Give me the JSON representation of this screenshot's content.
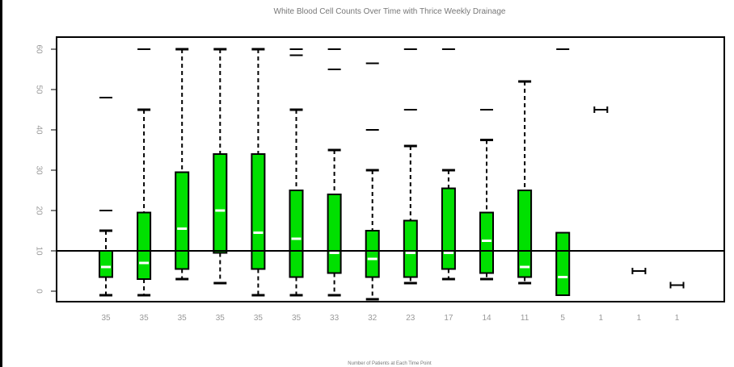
{
  "chart_data": {
    "type": "box",
    "title": "White Blood Cell Counts Over Time with Thrice Weekly Drainage",
    "xlabel": "Number of Patients at Each Time Point",
    "ylabel": "",
    "ylim": [
      -3,
      63
    ],
    "yticks": [
      0,
      10,
      20,
      30,
      40,
      50,
      60
    ],
    "reference_line": 10,
    "box_color": "#00e000",
    "median_color": "#ffffff",
    "grid": false,
    "categories": [
      "35",
      "35",
      "35",
      "35",
      "35",
      "35",
      "33",
      "32",
      "23",
      "17",
      "14",
      "11",
      "5",
      "1",
      "1",
      "1"
    ],
    "boxes": [
      {
        "n": "35",
        "whisker_low": -1,
        "q1": 3.5,
        "median": 6,
        "q3": 10,
        "whisker_high": 15,
        "outliers": [
          20,
          48
        ]
      },
      {
        "n": "35",
        "whisker_low": -1,
        "q1": 3,
        "median": 7,
        "q3": 19.5,
        "whisker_high": 45,
        "outliers": [
          60
        ]
      },
      {
        "n": "35",
        "whisker_low": 3,
        "q1": 5.5,
        "median": 15.5,
        "q3": 29.5,
        "whisker_high": 60,
        "outliers": []
      },
      {
        "n": "35",
        "whisker_low": 2,
        "q1": 9.5,
        "median": 20,
        "q3": 34,
        "whisker_high": 60,
        "outliers": []
      },
      {
        "n": "35",
        "whisker_low": -1,
        "q1": 5.5,
        "median": 14.5,
        "q3": 34,
        "whisker_high": 60,
        "outliers": []
      },
      {
        "n": "35",
        "whisker_low": -1,
        "q1": 3.5,
        "median": 13,
        "q3": 25,
        "whisker_high": 45,
        "outliers": [
          58.5,
          60
        ]
      },
      {
        "n": "33",
        "whisker_low": -1,
        "q1": 4.5,
        "median": 9.5,
        "q3": 24,
        "whisker_high": 35,
        "outliers": [
          55,
          60
        ]
      },
      {
        "n": "32",
        "whisker_low": -2,
        "q1": 3.5,
        "median": 8,
        "q3": 15,
        "whisker_high": 30,
        "outliers": [
          40,
          56.5
        ]
      },
      {
        "n": "23",
        "whisker_low": 2,
        "q1": 3.5,
        "median": 9.5,
        "q3": 17.5,
        "whisker_high": 36,
        "outliers": [
          45,
          60
        ]
      },
      {
        "n": "17",
        "whisker_low": 3,
        "q1": 5.5,
        "median": 9.5,
        "q3": 25.5,
        "whisker_high": 30,
        "outliers": [
          60
        ]
      },
      {
        "n": "14",
        "whisker_low": 3,
        "q1": 4.5,
        "median": 12.5,
        "q3": 19.5,
        "whisker_high": 37.5,
        "outliers": [
          45
        ]
      },
      {
        "n": "11",
        "whisker_low": 2,
        "q1": 3.5,
        "median": 6,
        "q3": 25,
        "whisker_high": 52,
        "outliers": []
      },
      {
        "n": "5",
        "whisker_low": -1,
        "q1": -1,
        "median": 3.5,
        "q3": 14.5,
        "whisker_high": 14.5,
        "outliers": [
          60
        ]
      },
      {
        "n": "1",
        "whisker_low": 45,
        "q1": 45,
        "median": 45,
        "q3": 45,
        "whisker_high": 45,
        "outliers": []
      },
      {
        "n": "1",
        "whisker_low": 5,
        "q1": 5,
        "median": 5,
        "q3": 5,
        "whisker_high": 5,
        "outliers": []
      },
      {
        "n": "1",
        "whisker_low": 1.5,
        "q1": 1.5,
        "median": 1.5,
        "q3": 1.5,
        "whisker_high": 1.5,
        "outliers": []
      }
    ]
  }
}
